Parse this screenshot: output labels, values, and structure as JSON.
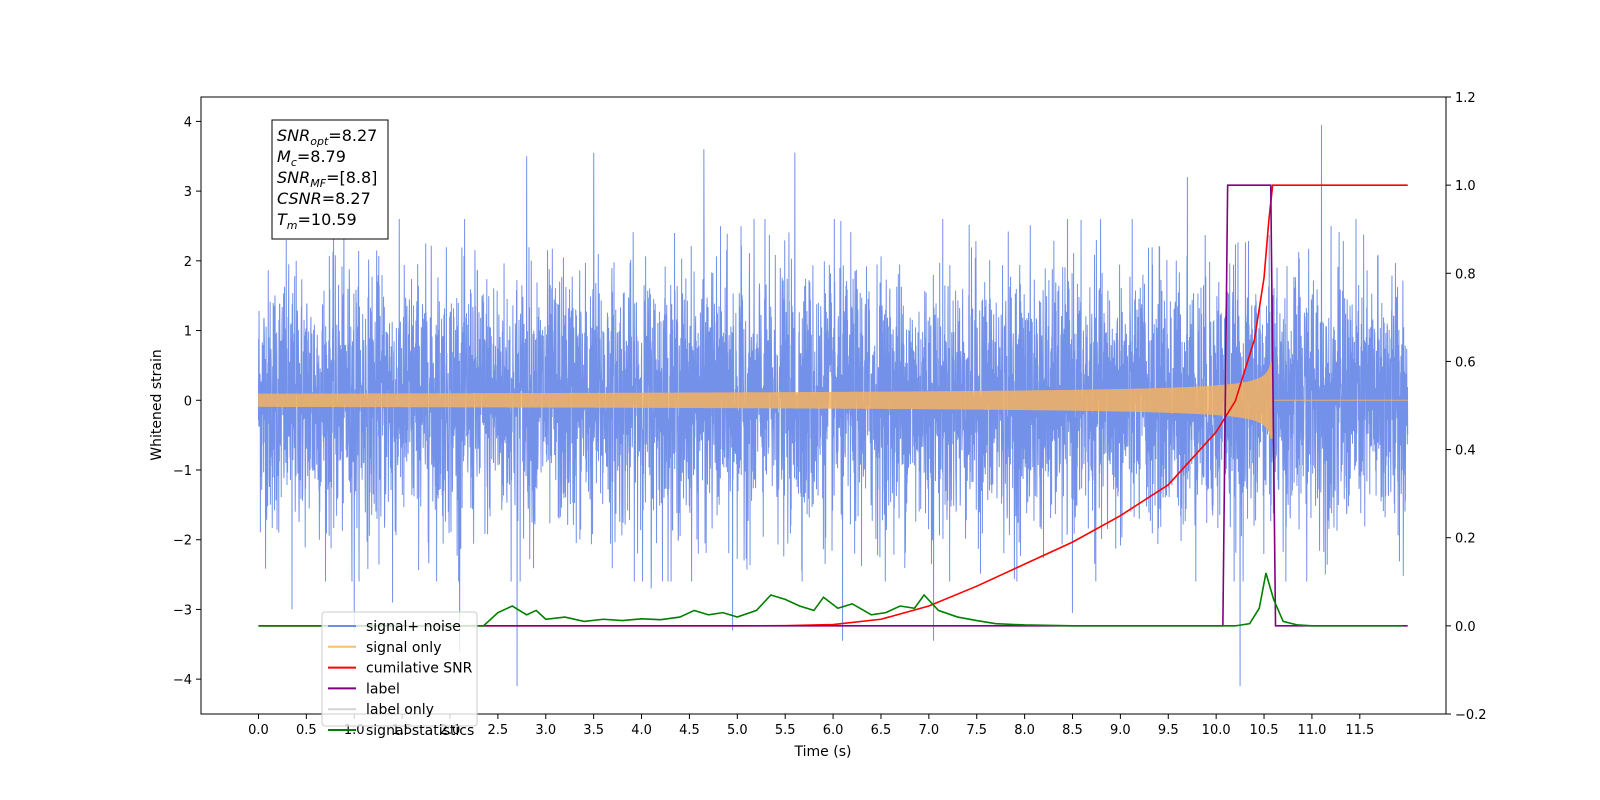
{
  "chart_data": {
    "type": "line",
    "title": "",
    "xlabel": "Time (s)",
    "ylabel_left": "Whitened strain",
    "ylabel_right": "",
    "xlim": [
      -0.6,
      12.4
    ],
    "ylim_left": [
      -4.5,
      4.35
    ],
    "ylim_right": [
      -0.2,
      1.2
    ],
    "x_ticks": [
      0.0,
      0.5,
      1.0,
      1.5,
      2.0,
      2.5,
      3.0,
      3.5,
      4.0,
      4.5,
      5.0,
      5.5,
      6.0,
      6.5,
      7.0,
      7.5,
      8.0,
      8.5,
      9.0,
      9.5,
      10.0,
      10.5,
      11.0,
      11.5
    ],
    "x_tick_labels": [
      "0.0",
      "0.5",
      "1.0",
      "1.5",
      "2.0",
      "2.5",
      "3.0",
      "3.5",
      "4.0",
      "4.5",
      "5.0",
      "5.5",
      "6.0",
      "6.5",
      "7.0",
      "7.5",
      "8.0",
      "8.5",
      "9.0",
      "9.5",
      "10.0",
      "10.5",
      "11.0",
      "11.5"
    ],
    "y_left_ticks": [
      -4,
      -3,
      -2,
      -1,
      0,
      1,
      2,
      3,
      4
    ],
    "y_left_tick_labels": [
      "−4",
      "−3",
      "−2",
      "−1",
      "0",
      "1",
      "2",
      "3",
      "4"
    ],
    "y_right_ticks": [
      -0.2,
      0.0,
      0.2,
      0.4,
      0.6,
      0.8,
      1.0,
      1.2
    ],
    "y_right_tick_labels": [
      "−0.2",
      "0.0",
      "0.2",
      "0.4",
      "0.6",
      "0.8",
      "1.0",
      "1.2"
    ],
    "grid": false,
    "legend_position": "lower-left",
    "annotation": {
      "lines": [
        {
          "base": "SNR",
          "sub": "opt",
          "value": "=8.27"
        },
        {
          "base": "M",
          "sub": "c",
          "value": "=8.79"
        },
        {
          "base": "SNR",
          "sub": "MF",
          "value": "=[8.8]"
        },
        {
          "base": "CSNR",
          "sub": "",
          "value": "=8.27"
        },
        {
          "base": "T",
          "sub": "m",
          "value": "=10.59"
        }
      ]
    },
    "series": [
      {
        "name": "signal+ noise",
        "axis": "left",
        "color": "#5b7ee5",
        "kind": "noise",
        "x_range": [
          0.0,
          12.0
        ],
        "peaks": [
          {
            "x": 0.35,
            "y": -3.0
          },
          {
            "x": 1.0,
            "y": -3.3
          },
          {
            "x": 1.4,
            "y": -2.9
          },
          {
            "x": 2.1,
            "y": -3.6
          },
          {
            "x": 2.7,
            "y": -4.1
          },
          {
            "x": 2.8,
            "y": 3.5
          },
          {
            "x": 3.5,
            "y": 3.55
          },
          {
            "x": 4.1,
            "y": -2.7
          },
          {
            "x": 4.65,
            "y": 3.6
          },
          {
            "x": 4.95,
            "y": -3.3
          },
          {
            "x": 5.6,
            "y": 3.55
          },
          {
            "x": 6.1,
            "y": -3.45
          },
          {
            "x": 7.05,
            "y": -3.45
          },
          {
            "x": 8.5,
            "y": -3.05
          },
          {
            "x": 9.7,
            "y": 3.2
          },
          {
            "x": 10.25,
            "y": -4.1
          },
          {
            "x": 11.1,
            "y": 3.95
          }
        ]
      },
      {
        "name": "signal only",
        "axis": "left",
        "color": "#f4b25f",
        "kind": "chirp",
        "x_range": [
          0.0,
          12.0
        ],
        "merger_time": 10.59,
        "peak_amplitude": 0.55
      },
      {
        "name": "cumilative SNR",
        "axis": "right",
        "color": "#ff0000",
        "points": [
          [
            0.0,
            0.0
          ],
          [
            5.0,
            0.0
          ],
          [
            5.5,
            0.0005
          ],
          [
            6.0,
            0.003
          ],
          [
            6.5,
            0.015
          ],
          [
            7.0,
            0.045
          ],
          [
            7.5,
            0.09
          ],
          [
            8.0,
            0.14
          ],
          [
            8.5,
            0.19
          ],
          [
            9.0,
            0.25
          ],
          [
            9.5,
            0.32
          ],
          [
            10.0,
            0.44
          ],
          [
            10.2,
            0.51
          ],
          [
            10.4,
            0.65
          ],
          [
            10.5,
            0.79
          ],
          [
            10.55,
            0.92
          ],
          [
            10.59,
            1.0
          ],
          [
            12.0,
            1.0
          ]
        ]
      },
      {
        "name": "label",
        "axis": "right",
        "color": "#800080",
        "points": [
          [
            0.0,
            0.0
          ],
          [
            10.07,
            0.0
          ],
          [
            10.12,
            1.0
          ],
          [
            10.57,
            1.0
          ],
          [
            10.62,
            0.0
          ],
          [
            12.0,
            0.0
          ]
        ]
      },
      {
        "name": "label only",
        "axis": "right",
        "color": "#d3d3d3",
        "points": []
      },
      {
        "name": "signal statistics",
        "axis": "right",
        "color": "#008000",
        "points": [
          [
            0.0,
            0.0
          ],
          [
            2.0,
            0.0
          ],
          [
            2.35,
            0.0
          ],
          [
            2.5,
            0.03
          ],
          [
            2.65,
            0.045
          ],
          [
            2.8,
            0.025
          ],
          [
            2.9,
            0.035
          ],
          [
            3.0,
            0.015
          ],
          [
            3.2,
            0.02
          ],
          [
            3.4,
            0.01
          ],
          [
            3.6,
            0.015
          ],
          [
            3.8,
            0.012
          ],
          [
            4.0,
            0.016
          ],
          [
            4.2,
            0.014
          ],
          [
            4.4,
            0.02
          ],
          [
            4.55,
            0.035
          ],
          [
            4.7,
            0.025
          ],
          [
            4.85,
            0.03
          ],
          [
            5.0,
            0.02
          ],
          [
            5.2,
            0.035
          ],
          [
            5.35,
            0.07
          ],
          [
            5.5,
            0.06
          ],
          [
            5.65,
            0.045
          ],
          [
            5.8,
            0.035
          ],
          [
            5.9,
            0.065
          ],
          [
            6.05,
            0.04
          ],
          [
            6.2,
            0.05
          ],
          [
            6.4,
            0.025
          ],
          [
            6.55,
            0.03
          ],
          [
            6.7,
            0.045
          ],
          [
            6.85,
            0.04
          ],
          [
            6.95,
            0.07
          ],
          [
            7.1,
            0.035
          ],
          [
            7.3,
            0.02
          ],
          [
            7.5,
            0.012
          ],
          [
            7.7,
            0.005
          ],
          [
            8.0,
            0.002
          ],
          [
            8.5,
            0.0
          ],
          [
            9.0,
            0.0
          ],
          [
            10.2,
            0.0
          ],
          [
            10.35,
            0.005
          ],
          [
            10.45,
            0.04
          ],
          [
            10.52,
            0.12
          ],
          [
            10.6,
            0.06
          ],
          [
            10.7,
            0.01
          ],
          [
            10.85,
            0.002
          ],
          [
            11.0,
            0.0
          ],
          [
            11.5,
            0.0
          ],
          [
            11.95,
            0.0
          ]
        ]
      }
    ]
  }
}
